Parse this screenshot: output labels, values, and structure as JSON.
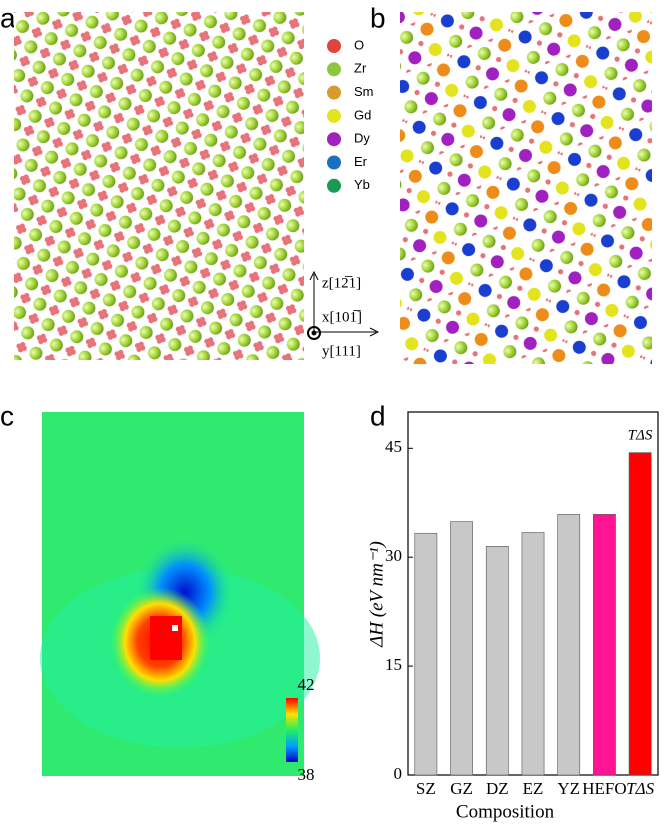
{
  "panel_labels": [
    "a",
    "b",
    "c",
    "d"
  ],
  "legend": [
    {
      "name": "O",
      "color": "#e0443a"
    },
    {
      "name": "Zr",
      "color": "#8ec63f"
    },
    {
      "name": "Sm",
      "color": "#d89a2a"
    },
    {
      "name": "Gd",
      "color": "#e3e31e"
    },
    {
      "name": "Dy",
      "color": "#a020c0"
    },
    {
      "name": "Er",
      "color": "#1a6fc0"
    },
    {
      "name": "Yb",
      "color": "#1a9a50"
    }
  ],
  "axes_labels": {
    "z": "z[12̅1]",
    "x": "x[101̅]",
    "y": "y[111]"
  },
  "colorbar": {
    "max": 42,
    "min": 38
  },
  "chart_data": {
    "type": "bar",
    "categories": [
      "SZ",
      "GZ",
      "DZ",
      "EZ",
      "YZ",
      "HEFO",
      "TΔS"
    ],
    "values": [
      33.3,
      34.9,
      31.5,
      33.4,
      35.9,
      35.9,
      44.4
    ],
    "colors": [
      "#c8c8c8",
      "#c8c8c8",
      "#c8c8c8",
      "#c8c8c8",
      "#c8c8c8",
      "#ff1493",
      "#ff0000"
    ],
    "annotation": "TΔS",
    "ylabel": "ΔH (eV nm⁻¹)",
    "xlabel": "Composition",
    "ylim": [
      0,
      50
    ],
    "yticks": [
      0,
      15,
      30,
      45
    ]
  }
}
